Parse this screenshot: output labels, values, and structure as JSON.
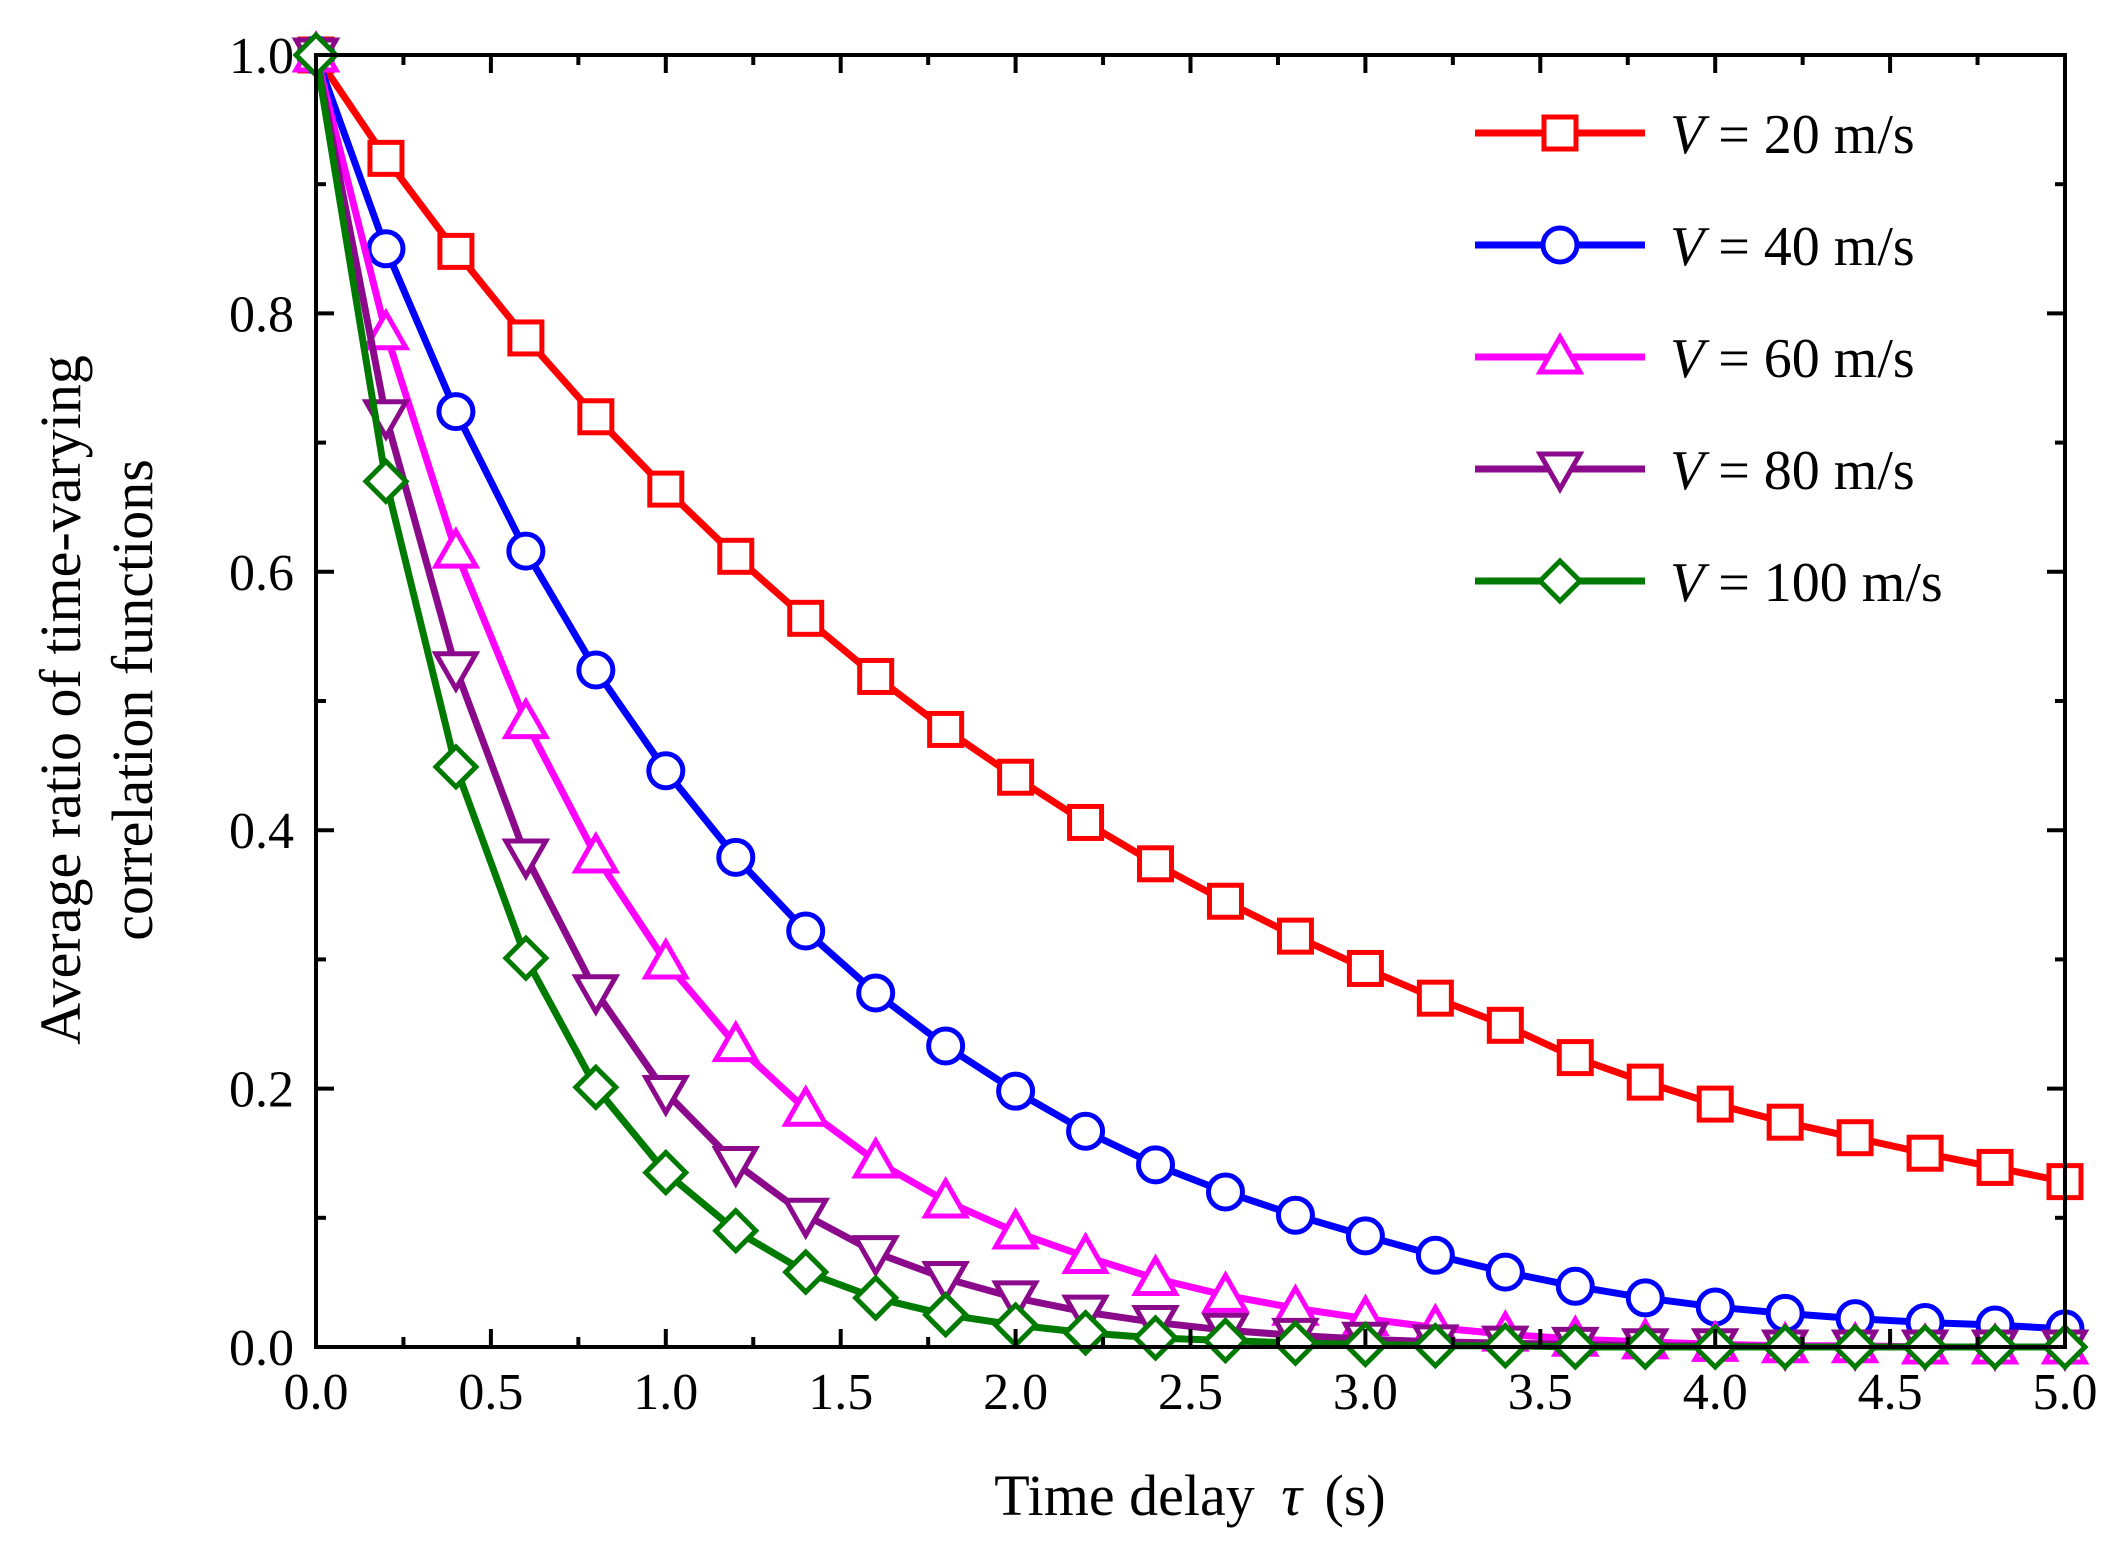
{
  "chart_data": {
    "type": "line",
    "title": "",
    "xlabel": "Time delay",
    "xlabel_symbol": "τ",
    "xlabel_unit": "(s)",
    "ylabel_line1": "Average ratio of time-varying",
    "ylabel_line2": "correlation functions",
    "xlim": [
      0,
      5
    ],
    "ylim": [
      0,
      1
    ],
    "xticks": [
      "0.0",
      "0.5",
      "1.0",
      "1.5",
      "2.0",
      "2.5",
      "3.0",
      "3.5",
      "4.0",
      "4.5",
      "5.0"
    ],
    "yticks": [
      "0.0",
      "0.2",
      "0.4",
      "0.6",
      "0.8",
      "1.0"
    ],
    "legend_position": "top-right",
    "x": [
      0.0,
      0.2,
      0.4,
      0.6,
      0.8,
      1.0,
      1.2,
      1.4,
      1.6,
      1.8,
      2.0,
      2.2,
      2.4,
      2.6,
      2.8,
      3.0,
      3.2,
      3.4,
      3.6,
      3.8,
      4.0,
      4.2,
      4.4,
      4.6,
      4.8,
      5.0
    ],
    "series": [
      {
        "name": "V = 20 m/s",
        "legend_var": "V",
        "legend_rest": " = 20 m/s",
        "color": "#ff0000",
        "marker": "square",
        "values": [
          1.0,
          0.92,
          0.848,
          0.781,
          0.72,
          0.664,
          0.612,
          0.564,
          0.519,
          0.478,
          0.441,
          0.406,
          0.374,
          0.345,
          0.318,
          0.293,
          0.27,
          0.249,
          0.224,
          0.205,
          0.188,
          0.174,
          0.162,
          0.15,
          0.139,
          0.128
        ]
      },
      {
        "name": "V = 40 m/s",
        "legend_var": "V",
        "legend_rest": " = 40 m/s",
        "color": "#0000ff",
        "marker": "circle",
        "values": [
          1.0,
          0.85,
          0.724,
          0.616,
          0.524,
          0.446,
          0.379,
          0.322,
          0.274,
          0.233,
          0.198,
          0.167,
          0.141,
          0.12,
          0.102,
          0.086,
          0.071,
          0.058,
          0.047,
          0.038,
          0.031,
          0.026,
          0.022,
          0.019,
          0.017,
          0.014
        ]
      },
      {
        "name": "V = 60 m/s",
        "legend_var": "V",
        "legend_rest": " = 60 m/s",
        "color": "#ff00ff",
        "marker": "triangle-up",
        "values": [
          1.0,
          0.785,
          0.616,
          0.484,
          0.38,
          0.298,
          0.234,
          0.184,
          0.144,
          0.113,
          0.089,
          0.07,
          0.053,
          0.04,
          0.03,
          0.022,
          0.015,
          0.01,
          0.006,
          0.004,
          0.002,
          0.001,
          0.001,
          0.0,
          0.0,
          0.0
        ]
      },
      {
        "name": "V = 80 m/s",
        "legend_var": "V",
        "legend_rest": " = 80 m/s",
        "color": "#8b0a8b",
        "marker": "triangle-down",
        "values": [
          1.0,
          0.72,
          0.525,
          0.38,
          0.275,
          0.197,
          0.142,
          0.102,
          0.073,
          0.053,
          0.038,
          0.027,
          0.019,
          0.013,
          0.009,
          0.006,
          0.004,
          0.003,
          0.002,
          0.001,
          0.001,
          0.0,
          0.0,
          0.0,
          0.0,
          0.0
        ]
      },
      {
        "name": "V = 100 m/s",
        "legend_var": "V",
        "legend_rest": " = 100 m/s",
        "color": "#007a00",
        "marker": "diamond",
        "values": [
          1.0,
          0.67,
          0.449,
          0.301,
          0.201,
          0.135,
          0.09,
          0.058,
          0.038,
          0.025,
          0.017,
          0.011,
          0.007,
          0.005,
          0.003,
          0.002,
          0.001,
          0.001,
          0.0,
          0.0,
          0.0,
          0.0,
          0.0,
          0.0,
          0.0,
          0.0
        ]
      }
    ]
  }
}
